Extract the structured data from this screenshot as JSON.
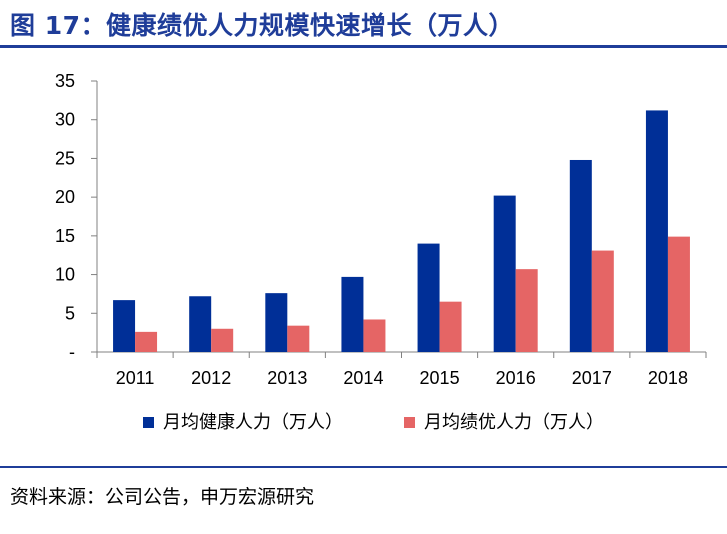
{
  "header": {
    "title": "图 17：健康绩优人力规模快速增长（万人）"
  },
  "footer": {
    "source": "资料来源：公司公告，申万宏源研究"
  },
  "chart_data": {
    "type": "bar",
    "categories": [
      "2011",
      "2012",
      "2013",
      "2014",
      "2015",
      "2016",
      "2017",
      "2018"
    ],
    "series": [
      {
        "name": "月均健康人力（万人）",
        "color": "#002F97",
        "values": [
          6.7,
          7.2,
          7.6,
          9.7,
          14.0,
          20.2,
          24.8,
          31.2
        ]
      },
      {
        "name": "月均绩优人力（万人）",
        "color": "#E56565",
        "values": [
          2.6,
          3.0,
          3.4,
          4.2,
          6.5,
          10.7,
          13.1,
          14.9
        ]
      }
    ],
    "yticks": [
      "-",
      "5",
      "10",
      "15",
      "20",
      "25",
      "30",
      "35"
    ],
    "ylim": [
      0,
      35
    ],
    "legend": "bottom",
    "grid": false
  }
}
